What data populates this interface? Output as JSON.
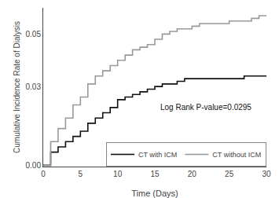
{
  "chart_data": {
    "type": "step",
    "xlabel": "Time (Days)",
    "ylabel": "Cumulative Incidence Rate of Dialysis",
    "annotations": [
      {
        "text": "Log Rank P-value=0.0295",
        "x": 15.5,
        "y": 0.022
      }
    ],
    "xlim": [
      0,
      30
    ],
    "ylim": [
      -0.0005,
      0.06
    ],
    "xticks": [
      0,
      5,
      10,
      15,
      20,
      25,
      30
    ],
    "yticks": [
      {
        "value": 0,
        "label": "0.00"
      },
      0.03,
      0.05
    ],
    "grid": false,
    "legend": "lower right",
    "x": [
      0,
      1,
      2,
      3,
      4,
      5,
      6,
      7,
      8,
      9,
      10,
      11,
      12,
      13,
      14,
      15,
      16,
      17,
      18,
      19,
      20,
      21,
      22,
      23,
      24,
      25,
      26,
      27,
      28,
      29,
      30
    ],
    "series": [
      {
        "name": "CT with ICM",
        "color": "#111111",
        "values": [
          0.0,
          0.005,
          0.007,
          0.009,
          0.011,
          0.013,
          0.016,
          0.018,
          0.02,
          0.022,
          0.025,
          0.026,
          0.027,
          0.028,
          0.029,
          0.03,
          0.031,
          0.031,
          0.032,
          0.033,
          0.033,
          0.033,
          0.033,
          0.033,
          0.033,
          0.033,
          0.033,
          0.034,
          0.034,
          0.034,
          0.034
        ]
      },
      {
        "name": "CT without ICM",
        "color": "#999999",
        "values": [
          0.0,
          0.009,
          0.014,
          0.018,
          0.023,
          0.026,
          0.031,
          0.034,
          0.036,
          0.038,
          0.04,
          0.042,
          0.044,
          0.045,
          0.046,
          0.048,
          0.05,
          0.051,
          0.052,
          0.052,
          0.053,
          0.054,
          0.054,
          0.054,
          0.054,
          0.055,
          0.055,
          0.055,
          0.056,
          0.057,
          0.057
        ]
      }
    ]
  }
}
